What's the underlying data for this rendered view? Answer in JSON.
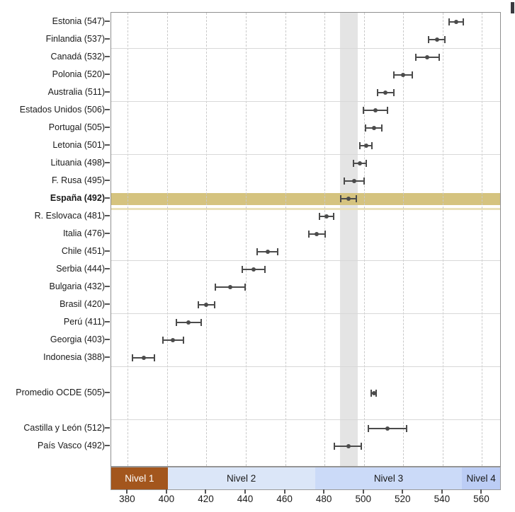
{
  "chart_data": {
    "type": "scatter",
    "title": "",
    "xlabel": "",
    "ylabel": "",
    "x_axis": {
      "min": 371.6,
      "max": 569.2,
      "ticks": [
        380,
        400,
        420,
        440,
        460,
        480,
        500,
        520,
        540,
        560
      ]
    },
    "grid": {
      "vertical_dashed_at_ticks": true,
      "horizontal_lines": true
    },
    "reference_band": {
      "from": 488,
      "to": 497,
      "color": "#e4e4e4"
    },
    "highlight": {
      "row_label": "España (492)",
      "band_color": "#d5c37f",
      "underline_color": "#e9e0ba"
    },
    "marker_color": "#4b4b4b",
    "rows": [
      {
        "label": "Estonia (547)",
        "value": 547,
        "ci_low": 543,
        "ci_high": 551,
        "slot": 0,
        "bold": false
      },
      {
        "label": "Finlandia (537)",
        "value": 537,
        "ci_low": 532.5,
        "ci_high": 541.5,
        "slot": 1,
        "bold": false
      },
      {
        "label": "Canadá (532)",
        "value": 532,
        "ci_low": 526,
        "ci_high": 538.5,
        "slot": 2,
        "bold": false
      },
      {
        "label": "Polonia (520)",
        "value": 520,
        "ci_low": 515,
        "ci_high": 525,
        "slot": 3,
        "bold": false
      },
      {
        "label": "Australia (511)",
        "value": 511,
        "ci_low": 506.5,
        "ci_high": 515.5,
        "slot": 4,
        "bold": false
      },
      {
        "label": "Estados Unidos (506)",
        "value": 506,
        "ci_low": 499.5,
        "ci_high": 512.5,
        "slot": 5,
        "bold": false
      },
      {
        "label": "Portugal (505)",
        "value": 505,
        "ci_low": 500.5,
        "ci_high": 509.5,
        "slot": 6,
        "bold": false
      },
      {
        "label": "Letonia (501)",
        "value": 501,
        "ci_low": 497.5,
        "ci_high": 504.5,
        "slot": 7,
        "bold": false
      },
      {
        "label": "Lituania (498)",
        "value": 498,
        "ci_low": 494.5,
        "ci_high": 501.5,
        "slot": 8,
        "bold": false
      },
      {
        "label": "F. Rusa (495)",
        "value": 495,
        "ci_low": 489.5,
        "ci_high": 500.5,
        "slot": 9,
        "bold": false
      },
      {
        "label": "España (492)",
        "value": 492,
        "ci_low": 488,
        "ci_high": 496.5,
        "slot": 10,
        "bold": true,
        "highlight": true
      },
      {
        "label": "R. Eslovaca (481)",
        "value": 481,
        "ci_low": 477,
        "ci_high": 485,
        "slot": 11,
        "bold": false
      },
      {
        "label": "Italia (476)",
        "value": 476,
        "ci_low": 471.5,
        "ci_high": 480.5,
        "slot": 12,
        "bold": false
      },
      {
        "label": "Chile (451)",
        "value": 451,
        "ci_low": 445.5,
        "ci_high": 456.5,
        "slot": 13,
        "bold": false
      },
      {
        "label": "Serbia (444)",
        "value": 444,
        "ci_low": 438,
        "ci_high": 450,
        "slot": 14,
        "bold": false
      },
      {
        "label": "Bulgaria (432)",
        "value": 432,
        "ci_low": 424,
        "ci_high": 440,
        "slot": 15,
        "bold": false
      },
      {
        "label": "Brasil (420)",
        "value": 420,
        "ci_low": 415.5,
        "ci_high": 424.5,
        "slot": 16,
        "bold": false
      },
      {
        "label": "Perú (411)",
        "value": 411,
        "ci_low": 404.5,
        "ci_high": 417.5,
        "slot": 17,
        "bold": false
      },
      {
        "label": "Georgia (403)",
        "value": 403,
        "ci_low": 397.5,
        "ci_high": 408.5,
        "slot": 18,
        "bold": false
      },
      {
        "label": "Indonesia (388)",
        "value": 388,
        "ci_low": 382,
        "ci_high": 394,
        "slot": 19,
        "bold": false
      },
      {
        "label": "Promedio OCDE (505)",
        "value": 505,
        "ci_low": 503.5,
        "ci_high": 506.5,
        "slot": 21,
        "bold": false
      },
      {
        "label": "Castilla y León (512)",
        "value": 512,
        "ci_low": 502,
        "ci_high": 522,
        "slot": 23,
        "bold": false
      },
      {
        "label": "País Vasco (492)",
        "value": 492,
        "ci_low": 484.5,
        "ci_high": 499,
        "slot": 24,
        "bold": false
      }
    ],
    "levels": [
      {
        "label": "Nivel 1",
        "from": 371.6,
        "to": 400.3,
        "bg": "#a3561d",
        "text_color": "#ffffff"
      },
      {
        "label": "Nivel 2",
        "from": 400.3,
        "to": 475.1,
        "bg": "#dbe6f8",
        "text_color": "#1a1a1a"
      },
      {
        "label": "Nivel 3",
        "from": 475.1,
        "to": 549.9,
        "bg": "#cbdaf8",
        "text_color": "#1a1a1a"
      },
      {
        "label": "Nivel 4",
        "from": 549.9,
        "to": 569.2,
        "bg": "#bccdf5",
        "text_color": "#1a1a1a"
      }
    ],
    "colors": {
      "grid_dashed": "#c9c9c9",
      "grid_solid": "#d8d8d8",
      "axis_border": "#8f8f8f",
      "tick": "#555555",
      "text": "#1a1a1a"
    }
  },
  "decorations": {
    "corner_mark_color": "#3a3a40"
  }
}
